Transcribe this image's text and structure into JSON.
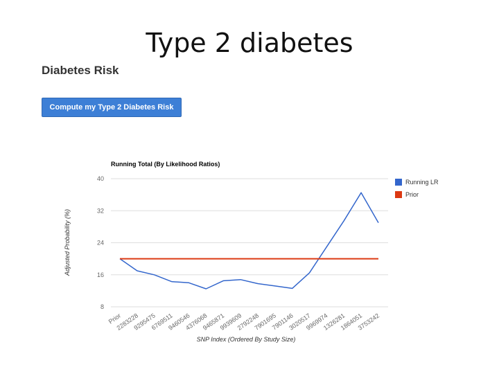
{
  "slide": {
    "title": "Type 2 diabetes"
  },
  "section": {
    "title": "Diabetes Risk"
  },
  "button": {
    "label": "Compute my Type 2 Diabetes Risk"
  },
  "chart_data": {
    "type": "line",
    "title": "Running Total (By Likelihood Ratios)",
    "xlabel": "SNP Index (Ordered By Study Size)",
    "ylabel": "Adjusted Probability (%)",
    "ylim": [
      8,
      40
    ],
    "yticks": [
      8,
      16,
      24,
      32,
      40
    ],
    "grid": true,
    "legend_position": "right",
    "categories": [
      "Prior",
      "2283228",
      "9295475",
      "6769511",
      "9460546",
      "4376068",
      "9465871",
      "9939609",
      "2792248",
      "7901695",
      "7901146",
      "3020517",
      "9969974",
      "1326281",
      "1864051",
      "3753242"
    ],
    "series": [
      {
        "name": "Running LR",
        "color": "#3366cc",
        "values": [
          20,
          17,
          16,
          14.3,
          14,
          12.5,
          14.5,
          14.8,
          13.8,
          13.2,
          12.6,
          16.5,
          23,
          29.5,
          36.5,
          29
        ]
      },
      {
        "name": "Prior",
        "color": "#dc3912",
        "values": [
          20,
          20,
          20,
          20,
          20,
          20,
          20,
          20,
          20,
          20,
          20,
          20,
          20,
          20,
          20,
          20
        ]
      }
    ]
  }
}
